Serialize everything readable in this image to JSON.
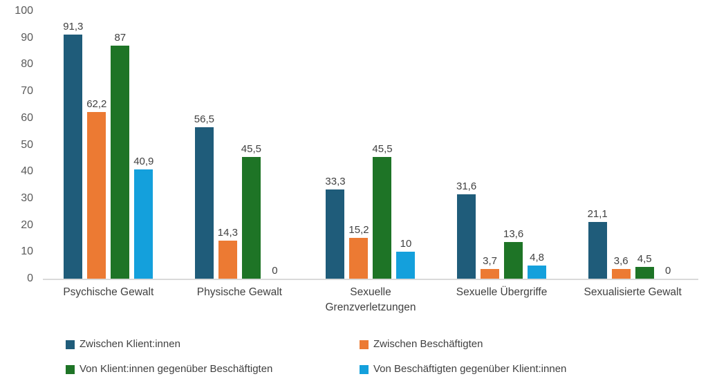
{
  "chart_data": {
    "type": "bar",
    "title": "",
    "xlabel": "",
    "ylabel": "",
    "ylim": [
      0,
      100
    ],
    "yticks": [
      100,
      90,
      80,
      70,
      60,
      50,
      40,
      30,
      20,
      10,
      0
    ],
    "grid": false,
    "legend_position": "bottom",
    "categories": [
      "Psychische Gewalt",
      "Physische Gewalt",
      "Sexuelle Grenzverletzungen",
      "Sexuelle Übergriffe",
      "Sexualisierte Gewalt"
    ],
    "series": [
      {
        "name": "Zwischen Klient:innen",
        "color": "#1F5C7A",
        "values": [
          91.3,
          56.5,
          33.3,
          31.6,
          21.1
        ],
        "labels": [
          "91,3",
          "56,5",
          "33,3",
          "31,6",
          "21,1"
        ]
      },
      {
        "name": "Zwischen Beschäftigten",
        "color": "#EC7A33",
        "values": [
          62.2,
          14.3,
          15.2,
          3.7,
          3.6
        ],
        "labels": [
          "62,2",
          "14,3",
          "15,2",
          "3,7",
          "3,6"
        ]
      },
      {
        "name": "Von Klient:innen gegenüber Beschäftigten",
        "color": "#1E7426",
        "values": [
          87,
          45.5,
          45.5,
          13.6,
          4.5
        ],
        "labels": [
          "87",
          "45,5",
          "45,5",
          "13,6",
          "4,5"
        ]
      },
      {
        "name": "Von Beschäftigten gegenüber Klient:innen",
        "color": "#14A0DC",
        "values": [
          40.9,
          0,
          10,
          4.8,
          0
        ],
        "labels": [
          "40,9",
          "0",
          "10",
          "4,8",
          "0"
        ]
      }
    ]
  },
  "colors": {
    "background": "#FFFFFF",
    "axis_line": "#D9D9D9",
    "tick_label": "#595959",
    "value_label": "#404040",
    "category_label": "#404040",
    "legend_label": "#404040"
  }
}
